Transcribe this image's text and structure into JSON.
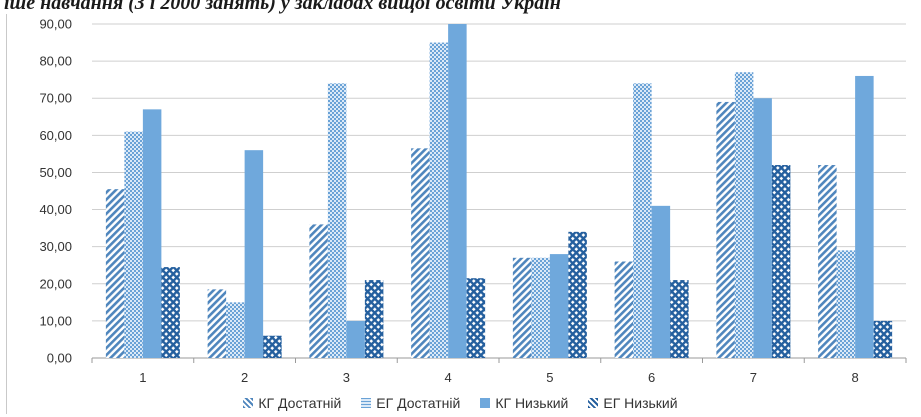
{
  "header": {
    "caption": "іше навчання (3 і 2000 занять) у закладах вищої освіти Україн"
  },
  "chart_data": {
    "type": "bar",
    "categories": [
      "1",
      "2",
      "3",
      "4",
      "5",
      "6",
      "7",
      "8"
    ],
    "series": [
      {
        "name": "КГ Достатній",
        "values": [
          45.5,
          18.5,
          36,
          56.5,
          27,
          26,
          69,
          52
        ],
        "color": "#5b95c9",
        "pattern": "diagonal"
      },
      {
        "name": "ЕГ Достатній",
        "values": [
          61,
          15,
          74,
          85,
          27,
          74,
          77,
          29
        ],
        "color": "#7eb1df",
        "pattern": "dots"
      },
      {
        "name": "КГ Низький",
        "values": [
          67,
          56,
          10,
          90,
          28,
          41,
          70,
          76
        ],
        "color": "#6fa8dc",
        "pattern": "solid"
      },
      {
        "name": "ЕГ Низький",
        "values": [
          24.5,
          6,
          21,
          21.5,
          34,
          21,
          52,
          10
        ],
        "color": "#2f6fb0",
        "pattern": "cross"
      }
    ],
    "y_ticks": [
      "0,00",
      "10,00",
      "20,00",
      "30,00",
      "40,00",
      "50,00",
      "60,00",
      "70,00",
      "80,00",
      "90,00"
    ],
    "ylim": [
      0,
      90
    ],
    "grid": true,
    "legend_position": "bottom",
    "title": "",
    "xlabel": "",
    "ylabel": ""
  }
}
